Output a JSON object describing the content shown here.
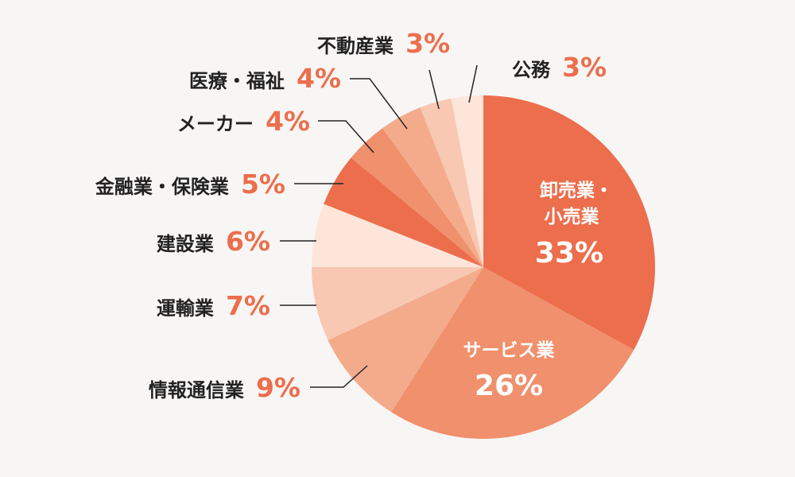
{
  "chart_data": {
    "type": "pie",
    "title": "",
    "unit": "%",
    "slices": [
      {
        "label": "卸売業・小売業",
        "value": 33,
        "color": "#ec6e4c"
      },
      {
        "label": "サービス業",
        "value": 26,
        "color": "#f0906c"
      },
      {
        "label": "情報通信業",
        "value": 9,
        "color": "#f3ab8c"
      },
      {
        "label": "運輸業",
        "value": 7,
        "color": "#f8c8b3"
      },
      {
        "label": "建設業",
        "value": 6,
        "color": "#fde5da"
      },
      {
        "label": "金融業・保険業",
        "value": 5,
        "color": "#ec6e4c"
      },
      {
        "label": "メーカー",
        "value": 4,
        "color": "#f0906c"
      },
      {
        "label": "医療・福祉",
        "value": 4,
        "color": "#f3ab8c"
      },
      {
        "label": "不動産業",
        "value": 3,
        "color": "#f8c8b3"
      },
      {
        "label": "公務",
        "value": 3,
        "color": "#fde5da"
      }
    ]
  },
  "labels": {
    "s0_line1": "卸売業・",
    "s0_line2": "小売業",
    "s0_pct": "33%",
    "s1_name": "サービス業",
    "s1_pct": "26%",
    "s2_name": "情報通信業",
    "s2_pct": "9%",
    "s3_name": "運輸業",
    "s3_pct": "7%",
    "s4_name": "建設業",
    "s4_pct": "6%",
    "s5_name": "金融業・保険業",
    "s5_pct": "5%",
    "s6_name": "メーカー",
    "s6_pct": "4%",
    "s7_name": "医療・福祉",
    "s7_pct": "4%",
    "s8_name": "不動産業",
    "s8_pct": "3%",
    "s9_name": "公務",
    "s9_pct": "3%"
  }
}
